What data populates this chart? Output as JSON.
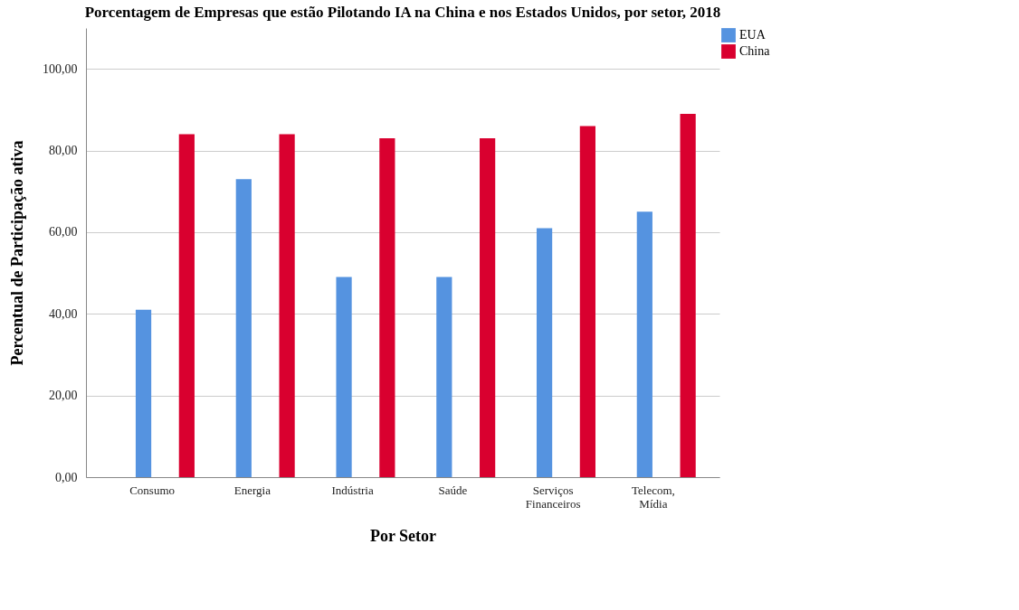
{
  "chart_data": {
    "type": "bar",
    "title": "Porcentagem de Empresas que estão Pilotando IA na China e nos Estados Unidos, por setor, 2018",
    "xlabel": "Por Setor",
    "ylabel": "Percentual de Participação ativa",
    "categories": [
      "Consumo",
      "Energia",
      "Indústria",
      "Saúde",
      "Serviços Financeiros",
      "Telecom, Mídia"
    ],
    "series": [
      {
        "name": "EUA",
        "color": "#5593e0",
        "values": [
          41,
          73,
          49,
          49,
          61,
          65
        ]
      },
      {
        "name": "China",
        "color": "#d9002f",
        "values": [
          84,
          84,
          83,
          83,
          86,
          89
        ]
      }
    ],
    "ylim": [
      0,
      110
    ],
    "yticks": [
      {
        "value": 0,
        "label": "0,00"
      },
      {
        "value": 20,
        "label": "20,00"
      },
      {
        "value": 40,
        "label": "40,00"
      },
      {
        "value": 60,
        "label": "60,00"
      },
      {
        "value": 80,
        "label": "80,00"
      },
      {
        "value": 100,
        "label": "100,00"
      }
    ],
    "grid": "y",
    "legend": "top right"
  }
}
